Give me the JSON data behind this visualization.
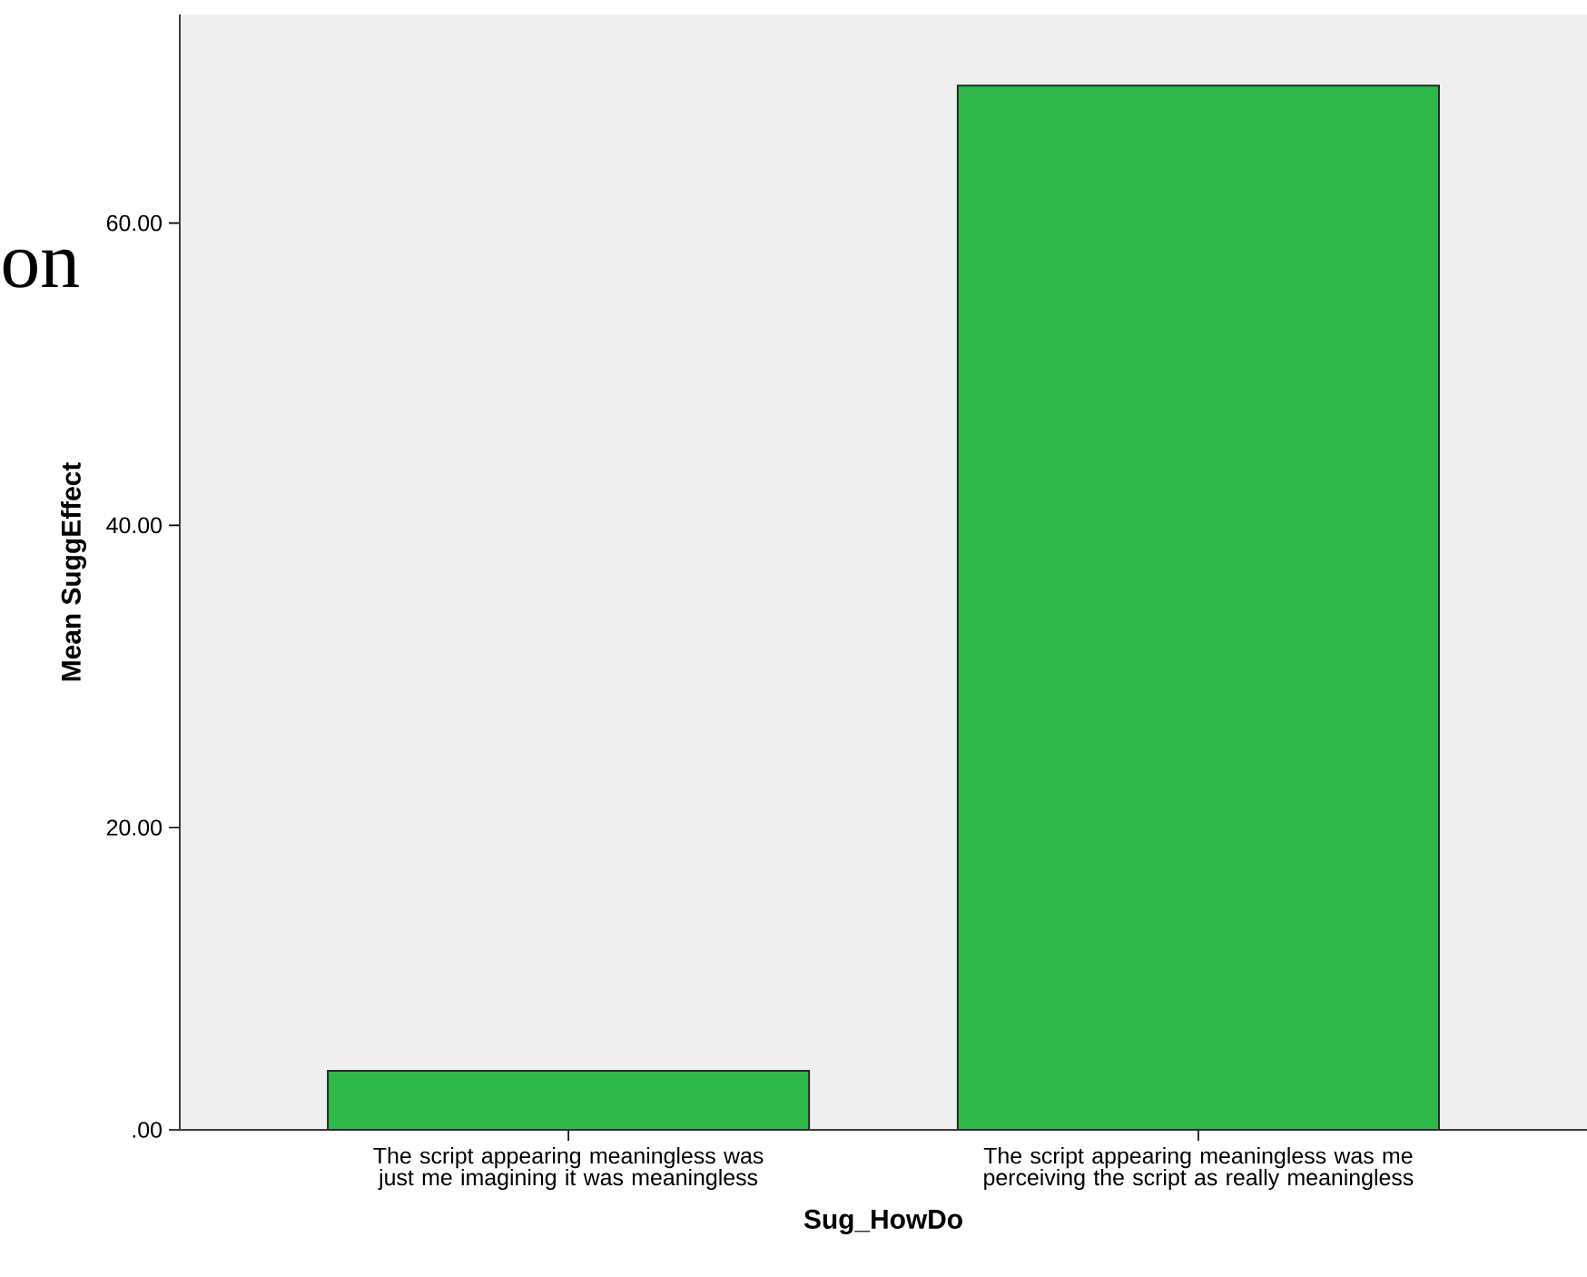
{
  "chart_data": {
    "type": "bar",
    "categories": [
      "The script appearing meaningless was just me imagining it was meaningless",
      "The script appearing meaningless was me perceiving the script as really meaningless"
    ],
    "values": [
      3.9,
      69.1
    ],
    "color": "#2eb84a",
    "xlabel": "Sug_HowDo",
    "ylabel": "Mean SuggEffect",
    "ylim": [
      0,
      73.8
    ],
    "yticks": [
      {
        "value": 0,
        "label": ".00"
      },
      {
        "value": 20,
        "label": "20.00"
      },
      {
        "value": 40,
        "label": "40.00"
      },
      {
        "value": 60,
        "label": "60.00"
      }
    ],
    "annotations": [
      "on"
    ],
    "grid": false,
    "legend": false
  }
}
